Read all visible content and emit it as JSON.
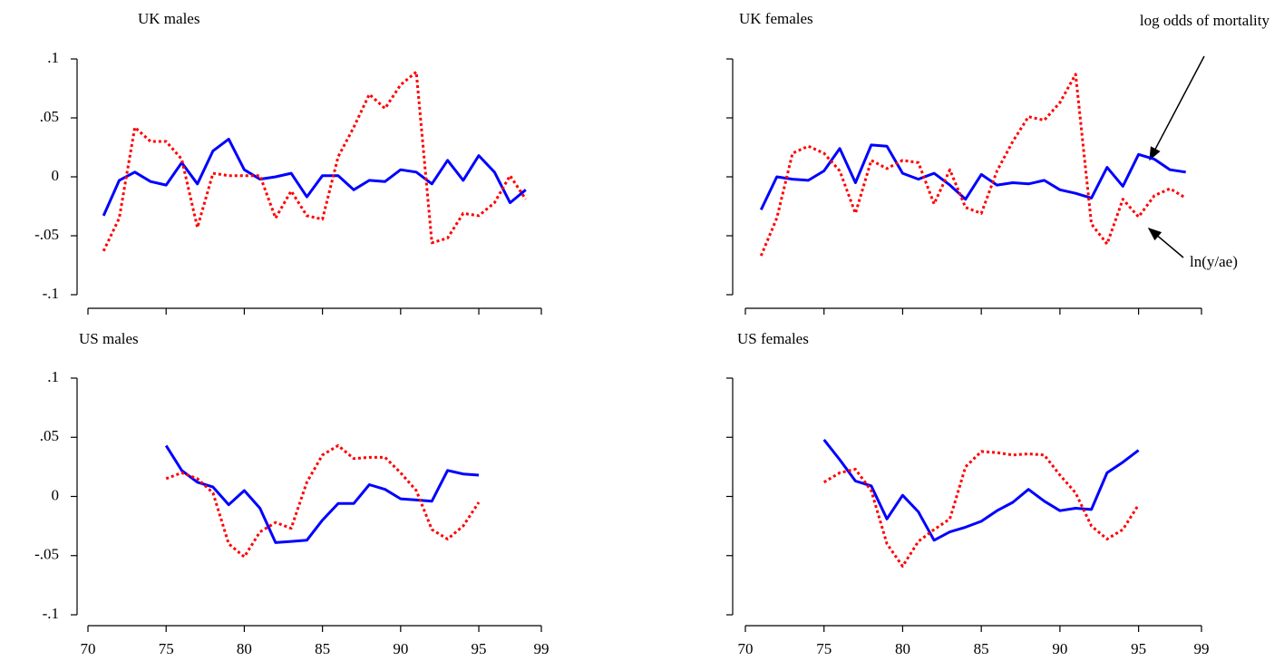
{
  "chart_data": [
    {
      "type": "line",
      "title": "UK males",
      "x": [
        71,
        72,
        73,
        74,
        75,
        76,
        77,
        78,
        79,
        80,
        81,
        82,
        83,
        84,
        85,
        86,
        87,
        88,
        89,
        90,
        91,
        92,
        93,
        94,
        95,
        96,
        97,
        98
      ],
      "series": [
        {
          "color": "#0000ff",
          "dash": false,
          "values": [
            -0.033,
            -0.003,
            0.004,
            -0.004,
            -0.007,
            0.012,
            -0.006,
            0.022,
            0.032,
            0.006,
            -0.002,
            0.0,
            0.003,
            -0.017,
            0.001,
            0.001,
            -0.011,
            -0.003,
            -0.004,
            0.006,
            0.004,
            -0.006,
            0.014,
            -0.003,
            0.018,
            0.004,
            -0.022,
            -0.011
          ]
        },
        {
          "color": "#ff0000",
          "dash": true,
          "values": [
            -0.063,
            -0.035,
            0.042,
            0.03,
            0.03,
            0.015,
            -0.043,
            0.003,
            0.001,
            0.001,
            0.001,
            -0.035,
            -0.012,
            -0.033,
            -0.036,
            0.017,
            0.042,
            0.07,
            0.058,
            0.078,
            0.089,
            -0.056,
            -0.052,
            -0.031,
            -0.033,
            -0.022,
            0.001,
            -0.019
          ]
        }
      ],
      "xlim": [
        70,
        99
      ],
      "xticks": [
        70,
        75,
        80,
        85,
        90,
        95,
        99
      ],
      "ylim": [
        -0.1,
        0.1
      ],
      "yticks": [
        {
          "value": 0.1,
          "label": ".1"
        },
        {
          "value": 0.05,
          "label": ".05"
        },
        {
          "value": 0,
          "label": "0"
        },
        {
          "value": -0.05,
          "label": "-.05"
        },
        {
          "value": -0.1,
          "label": "-.1"
        }
      ]
    },
    {
      "type": "line",
      "title": "UK females",
      "x": [
        71,
        72,
        73,
        74,
        75,
        76,
        77,
        78,
        79,
        80,
        81,
        82,
        83,
        84,
        85,
        86,
        87,
        88,
        89,
        90,
        91,
        92,
        93,
        94,
        95,
        96,
        97,
        98
      ],
      "series": [
        {
          "name": "log odds of mortality",
          "color": "#0000ff",
          "dash": false,
          "values": [
            -0.028,
            0.0,
            -0.002,
            -0.003,
            0.005,
            0.024,
            -0.005,
            0.027,
            0.026,
            0.003,
            -0.002,
            0.003,
            -0.007,
            -0.019,
            0.002,
            -0.007,
            -0.005,
            -0.006,
            -0.003,
            -0.011,
            -0.014,
            -0.018,
            0.008,
            -0.008,
            0.019,
            0.015,
            0.006,
            0.004
          ]
        },
        {
          "name": "ln(y/ae)",
          "color": "#ff0000",
          "dash": true,
          "values": [
            -0.067,
            -0.035,
            0.02,
            0.026,
            0.02,
            0.005,
            -0.031,
            0.014,
            0.007,
            0.014,
            0.012,
            -0.023,
            0.006,
            -0.026,
            -0.031,
            0.005,
            0.03,
            0.051,
            0.048,
            0.063,
            0.087,
            -0.04,
            -0.057,
            -0.019,
            -0.034,
            -0.016,
            -0.01,
            -0.018
          ]
        }
      ],
      "xlim": [
        70,
        99
      ],
      "xticks": [
        70,
        75,
        80,
        85,
        90,
        95,
        99
      ],
      "ylim": [
        -0.1,
        0.1
      ],
      "yticks": [
        0.1,
        0.05,
        0,
        -0.05,
        -0.1
      ]
    },
    {
      "type": "line",
      "title": "US males",
      "x": [
        75,
        76,
        77,
        78,
        79,
        80,
        81,
        82,
        83,
        84,
        85,
        86,
        87,
        88,
        89,
        90,
        91,
        92,
        93,
        94,
        95
      ],
      "series": [
        {
          "color": "#0000ff",
          "dash": false,
          "values": [
            0.043,
            0.022,
            0.012,
            0.008,
            -0.007,
            0.005,
            -0.01,
            -0.039,
            -0.038,
            -0.037,
            -0.02,
            -0.006,
            -0.006,
            0.01,
            0.006,
            -0.002,
            -0.003,
            -0.004,
            0.022,
            0.019,
            0.018
          ]
        },
        {
          "color": "#ff0000",
          "dash": true,
          "values": [
            0.015,
            0.02,
            0.015,
            0.003,
            -0.04,
            -0.051,
            -0.03,
            -0.022,
            -0.027,
            0.012,
            0.035,
            0.043,
            0.032,
            0.033,
            0.033,
            0.02,
            0.005,
            -0.028,
            -0.036,
            -0.025,
            -0.005
          ]
        }
      ],
      "xlim": [
        70,
        99
      ],
      "xticks": [
        70,
        75,
        80,
        85,
        90,
        95,
        99
      ],
      "ylim": [
        -0.1,
        0.1
      ],
      "yticks": [
        {
          "value": 0.1,
          "label": ".1"
        },
        {
          "value": 0.05,
          "label": ".05"
        },
        {
          "value": 0,
          "label": "0"
        },
        {
          "value": -0.05,
          "label": "-.05"
        },
        {
          "value": -0.1,
          "label": "-.1"
        }
      ]
    },
    {
      "type": "line",
      "title": "US females",
      "x": [
        75,
        76,
        77,
        78,
        79,
        80,
        81,
        82,
        83,
        84,
        85,
        86,
        87,
        88,
        89,
        90,
        91,
        92,
        93,
        94,
        95
      ],
      "series": [
        {
          "color": "#0000ff",
          "dash": false,
          "values": [
            0.048,
            0.031,
            0.013,
            0.009,
            -0.019,
            0.001,
            -0.013,
            -0.037,
            -0.03,
            -0.026,
            -0.021,
            -0.012,
            -0.005,
            0.006,
            -0.004,
            -0.012,
            -0.01,
            -0.011,
            0.02,
            0.029,
            0.039
          ]
        },
        {
          "color": "#ff0000",
          "dash": true,
          "values": [
            0.012,
            0.02,
            0.023,
            0.005,
            -0.04,
            -0.059,
            -0.038,
            -0.028,
            -0.019,
            0.025,
            0.038,
            0.037,
            0.035,
            0.036,
            0.035,
            0.018,
            0.003,
            -0.025,
            -0.036,
            -0.028,
            -0.007
          ]
        }
      ],
      "xlim": [
        70,
        99
      ],
      "xticks": [
        70,
        75,
        80,
        85,
        90,
        95,
        99
      ],
      "ylim": [
        -0.1,
        0.1
      ],
      "yticks": [
        0.1,
        0.05,
        0,
        -0.05,
        -0.1
      ]
    }
  ]
}
